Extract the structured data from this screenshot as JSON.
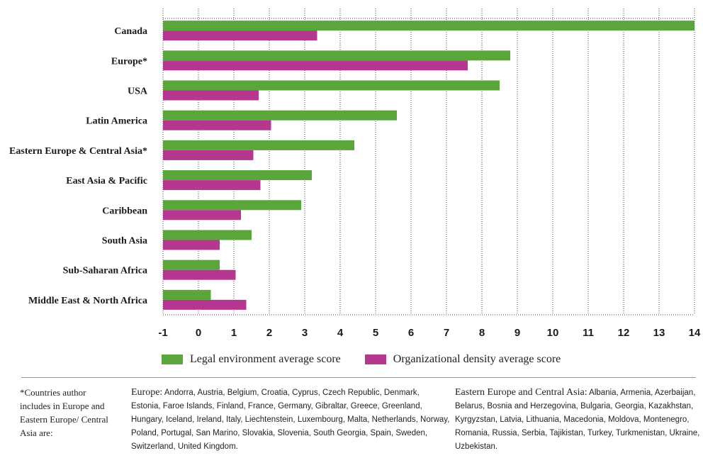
{
  "chart_data": {
    "type": "bar",
    "orientation": "horizontal",
    "categories": [
      "Canada",
      "Europe*",
      "USA",
      "Latin America",
      "Eastern Europe & Central Asia*",
      "East Asia & Pacific",
      "Caribbean",
      "South Asia",
      "Sub-Saharan Africa",
      "Middle East & North Africa"
    ],
    "series": [
      {
        "name": "Legal environment average score",
        "color": "#5aa63a",
        "values": [
          14.0,
          8.8,
          8.5,
          5.6,
          4.4,
          3.2,
          2.9,
          1.5,
          0.6,
          0.35
        ]
      },
      {
        "name": "Organizational density average score",
        "color": "#b5378f",
        "values": [
          3.35,
          7.6,
          1.7,
          2.05,
          1.55,
          1.75,
          1.2,
          0.6,
          1.05,
          1.35
        ]
      }
    ],
    "xlim": [
      -1,
      14
    ],
    "xticks": [
      "-1",
      "0",
      "1",
      "2",
      "3",
      "4",
      "5",
      "6",
      "7",
      "8",
      "9",
      "10",
      "11",
      "12",
      "13",
      "14"
    ],
    "grid": true,
    "legend_position": "bottom"
  },
  "legend": {
    "legal_label": "Legal environment average score",
    "org_label": "Organizational density average score"
  },
  "footnote": {
    "note": "*Countries author includes in Europe and Eastern Europe/ Central Asia are:",
    "europe_head": "Europe:",
    "europe_list": "Andorra, Austria, Belgium, Croatia, Cyprus, Czech Republic, Denmark, Estonia, Faroe Islands, Finland, France, Germany, Gibraltar, Greece, Greenland, Hungary, Iceland, Ireland, Italy, Liechtenstein, Luxembourg, Malta, Netherlands, Norway, Poland, Portugal, San Marino, Slovakia, Slovenia, South Georgia, Spain, Sweden, Switzerland, United Kingdom.",
    "eeca_head": "Eastern Europe and Central Asia:",
    "eeca_list": "Albania, Armenia, Azerbaijan, Belarus, Bosnia and Herzegovina, Bulgaria, Georgia, Kazakhstan, Kyrgyzstan, Latvia, Lithuania, Macedonia, Moldova, Montenegro, Romania, Russia, Serbia, Tajikistan, Turkey, Turkmenistan, Ukraine, Uzbekistan."
  },
  "colors": {
    "legal": "#5aa63a",
    "org": "#b5378f"
  }
}
